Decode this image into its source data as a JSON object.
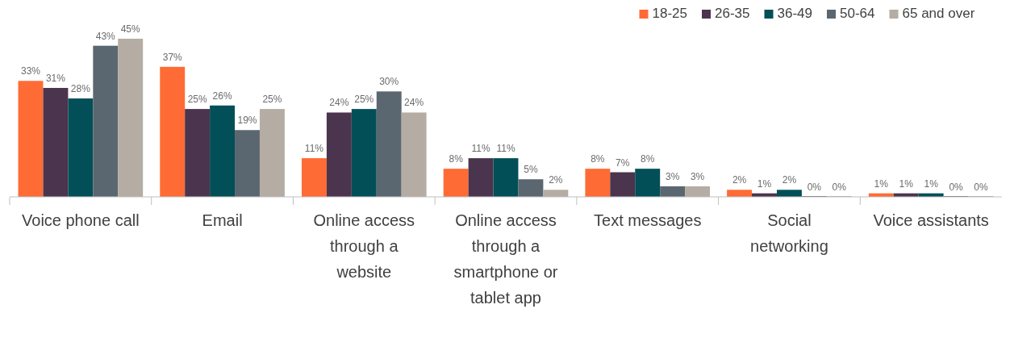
{
  "chart_data": {
    "type": "bar",
    "categories": [
      "Voice phone call",
      "Email",
      "Online access through a website",
      "Online access through a smartphone or tablet app",
      "Text messages",
      "Social networking",
      "Voice assistants"
    ],
    "series": [
      {
        "name": "18-25",
        "color": "#ff6b35",
        "values": [
          33,
          37,
          11,
          8,
          8,
          2,
          1
        ],
        "value_labels": [
          "33%",
          "37%",
          "11%",
          "8%",
          "8%",
          "2%",
          "1%"
        ]
      },
      {
        "name": "26-35",
        "color": "#4b344d",
        "values": [
          31,
          25,
          24,
          11,
          7,
          1,
          1
        ],
        "value_labels": [
          "31%",
          "25%",
          "24%",
          "11%",
          "7%",
          "1%",
          "1%"
        ]
      },
      {
        "name": "36-49",
        "color": "#034f58",
        "values": [
          28,
          26,
          25,
          11,
          8,
          2,
          1
        ],
        "value_labels": [
          "28%",
          "26%",
          "25%",
          "11%",
          "8%",
          "2%",
          "1%"
        ]
      },
      {
        "name": "50-64",
        "color": "#5b6770",
        "values": [
          43,
          19,
          30,
          5,
          3,
          0,
          0
        ],
        "value_labels": [
          "43%",
          "19%",
          "30%",
          "5%",
          "3%",
          "0%",
          "0%"
        ]
      },
      {
        "name": "65 and over",
        "color": "#b5aca3",
        "values": [
          45,
          25,
          24,
          2,
          3,
          0,
          0
        ],
        "value_labels": [
          "45%",
          "25%",
          "24%",
          "2%",
          "3%",
          "0%",
          "0%"
        ]
      }
    ],
    "legend": "top right"
  }
}
